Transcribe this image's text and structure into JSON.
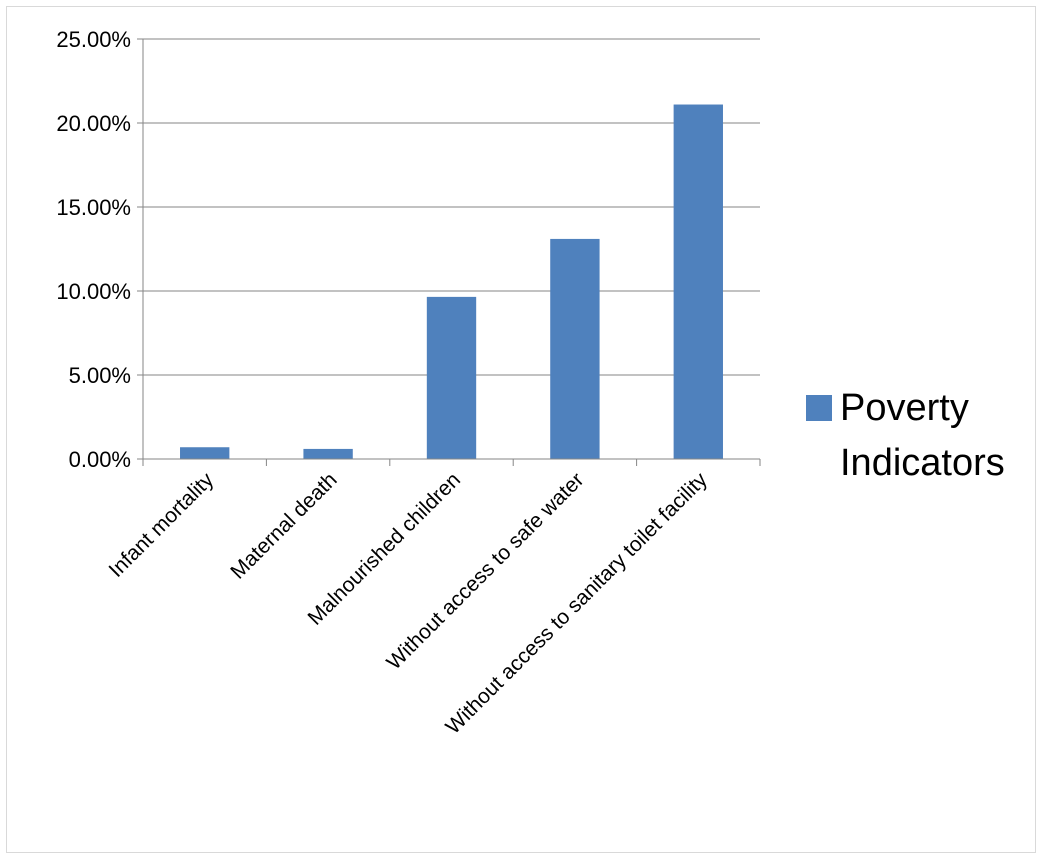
{
  "chart_data": {
    "type": "bar",
    "categories": [
      "Infant mortality",
      "Maternal death",
      "Malnourished children",
      "Without access to safe water",
      "Without access to sanitary toilet facility"
    ],
    "series": [
      {
        "name": "Poverty Indicators",
        "values": [
          0.7,
          0.6,
          9.65,
          13.1,
          21.1
        ]
      }
    ],
    "ylim": [
      0,
      25
    ],
    "yticks": [
      0,
      5,
      10,
      15,
      20,
      25
    ],
    "ytick_labels": [
      "0.00%",
      "5.00%",
      "10.00%",
      "15.00%",
      "20.00%",
      "25.00%"
    ],
    "grid": true,
    "legend_position": "right",
    "legend_entries": [
      {
        "name": "Poverty Indicators",
        "lines": [
          "Poverty",
          "Indicators"
        ]
      }
    ],
    "colors": {
      "bar": "#4f81bd",
      "grid": "#868686",
      "axis": "#868686"
    }
  }
}
